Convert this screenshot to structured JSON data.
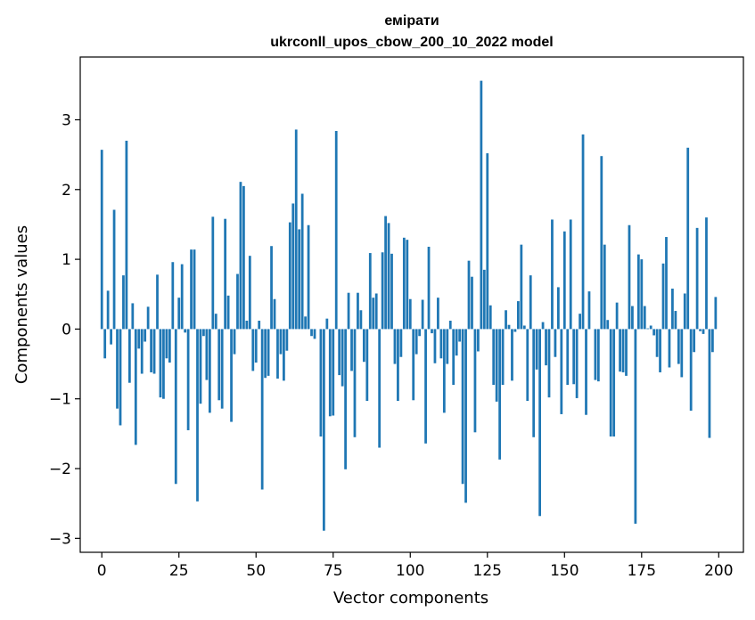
{
  "chart_data": {
    "type": "bar",
    "title": "емірати",
    "subtitle": "ukrconll_upos_cbow_200_10_2022 model",
    "xlabel": "Vector components",
    "ylabel": "Components values",
    "xlim": [
      -7,
      208
    ],
    "ylim": [
      -3.2,
      3.9
    ],
    "xticks": [
      0,
      25,
      50,
      75,
      100,
      125,
      150,
      175,
      200
    ],
    "xtick_labels": [
      "0",
      "25",
      "50",
      "75",
      "100",
      "125",
      "150",
      "175",
      "200"
    ],
    "yticks": [
      -3,
      -2,
      -1,
      0,
      1,
      2,
      3
    ],
    "ytick_labels": [
      "−3",
      "−2",
      "−1",
      "0",
      "1",
      "2",
      "3"
    ],
    "grid": false,
    "bar_color": "#1f77b4",
    "x": [
      0,
      1,
      2,
      3,
      4,
      5,
      6,
      7,
      8,
      9,
      10,
      11,
      12,
      13,
      14,
      15,
      16,
      17,
      18,
      19,
      20,
      21,
      22,
      23,
      24,
      25,
      26,
      27,
      28,
      29,
      30,
      31,
      32,
      33,
      34,
      35,
      36,
      37,
      38,
      39,
      40,
      41,
      42,
      43,
      44,
      45,
      46,
      47,
      48,
      49,
      50,
      51,
      52,
      53,
      54,
      55,
      56,
      57,
      58,
      59,
      60,
      61,
      62,
      63,
      64,
      65,
      66,
      67,
      68,
      69,
      70,
      71,
      72,
      73,
      74,
      75,
      76,
      77,
      78,
      79,
      80,
      81,
      82,
      83,
      84,
      85,
      86,
      87,
      88,
      89,
      90,
      91,
      92,
      93,
      94,
      95,
      96,
      97,
      98,
      99,
      100,
      101,
      102,
      103,
      104,
      105,
      106,
      107,
      108,
      109,
      110,
      111,
      112,
      113,
      114,
      115,
      116,
      117,
      118,
      119,
      120,
      121,
      122,
      123,
      124,
      125,
      126,
      127,
      128,
      129,
      130,
      131,
      132,
      133,
      134,
      135,
      136,
      137,
      138,
      139,
      140,
      141,
      142,
      143,
      144,
      145,
      146,
      147,
      148,
      149,
      150,
      151,
      152,
      153,
      154,
      155,
      156,
      157,
      158,
      159,
      160,
      161,
      162,
      163,
      164,
      165,
      166,
      167,
      168,
      169,
      170,
      171,
      172,
      173,
      174,
      175,
      176,
      177,
      178,
      179,
      180,
      181,
      182,
      183,
      184,
      185,
      186,
      187,
      188,
      189,
      190,
      191,
      192,
      193,
      194,
      195,
      196,
      197,
      198,
      199
    ],
    "values": [
      2.57,
      -0.42,
      0.55,
      -0.22,
      1.71,
      -1.14,
      -1.38,
      0.77,
      2.7,
      -0.77,
      0.37,
      -1.66,
      -0.28,
      -0.64,
      -0.18,
      0.32,
      -0.62,
      -0.64,
      0.78,
      -0.98,
      -1.0,
      -0.42,
      -0.48,
      0.96,
      -2.22,
      0.45,
      0.93,
      -0.05,
      -1.45,
      1.14,
      1.14,
      -2.47,
      -1.07,
      -0.1,
      -0.73,
      -1.2,
      1.61,
      0.22,
      -1.02,
      -1.14,
      1.58,
      0.48,
      -1.33,
      -0.36,
      0.79,
      2.11,
      2.05,
      0.12,
      1.05,
      -0.6,
      -0.48,
      0.12,
      -2.3,
      -0.7,
      -0.67,
      1.19,
      0.43,
      -0.71,
      -0.36,
      -0.74,
      -0.31,
      1.53,
      1.8,
      2.86,
      1.43,
      1.94,
      0.18,
      1.49,
      -0.1,
      -0.14,
      0.0,
      -1.54,
      -2.89,
      0.15,
      -1.25,
      -1.24,
      2.84,
      -0.66,
      -0.82,
      -2.01,
      0.52,
      -0.6,
      -1.55,
      0.52,
      0.27,
      -0.47,
      -1.03,
      1.09,
      0.45,
      0.51,
      -1.7,
      1.1,
      1.62,
      1.52,
      1.08,
      -0.5,
      -1.03,
      -0.4,
      1.31,
      1.28,
      0.43,
      -1.02,
      -0.36,
      -0.1,
      0.42,
      -1.64,
      1.18,
      -0.06,
      -0.49,
      0.45,
      -0.42,
      -1.2,
      -0.5,
      0.12,
      -0.8,
      -0.38,
      -0.18,
      -2.22,
      -2.49,
      0.98,
      0.75,
      -1.48,
      -0.32,
      3.56,
      0.85,
      2.52,
      0.34,
      -0.8,
      -1.04,
      -1.87,
      -0.8,
      0.27,
      0.06,
      -0.74,
      -0.04,
      0.4,
      1.21,
      0.05,
      -1.03,
      0.77,
      -1.55,
      -0.58,
      -2.68,
      0.1,
      -0.52,
      -0.98,
      1.57,
      -0.4,
      0.6,
      -1.22,
      1.4,
      -0.8,
      1.57,
      -0.79,
      -0.99,
      0.22,
      2.79,
      -1.23,
      0.54,
      0.0,
      -0.73,
      -0.75,
      2.48,
      1.21,
      0.13,
      -1.54,
      -1.54,
      0.38,
      -0.61,
      -0.62,
      -0.67,
      1.49,
      0.33,
      -2.79,
      1.07,
      1.0,
      0.33,
      0.01,
      0.05,
      -0.09,
      -0.4,
      -0.62,
      0.94,
      1.32,
      -0.55,
      0.58,
      0.26,
      -0.5,
      -0.69,
      0.51,
      2.6,
      -1.17,
      -0.33,
      1.45,
      -0.03,
      -0.07,
      1.6,
      -1.56,
      -0.33,
      0.46
    ]
  }
}
